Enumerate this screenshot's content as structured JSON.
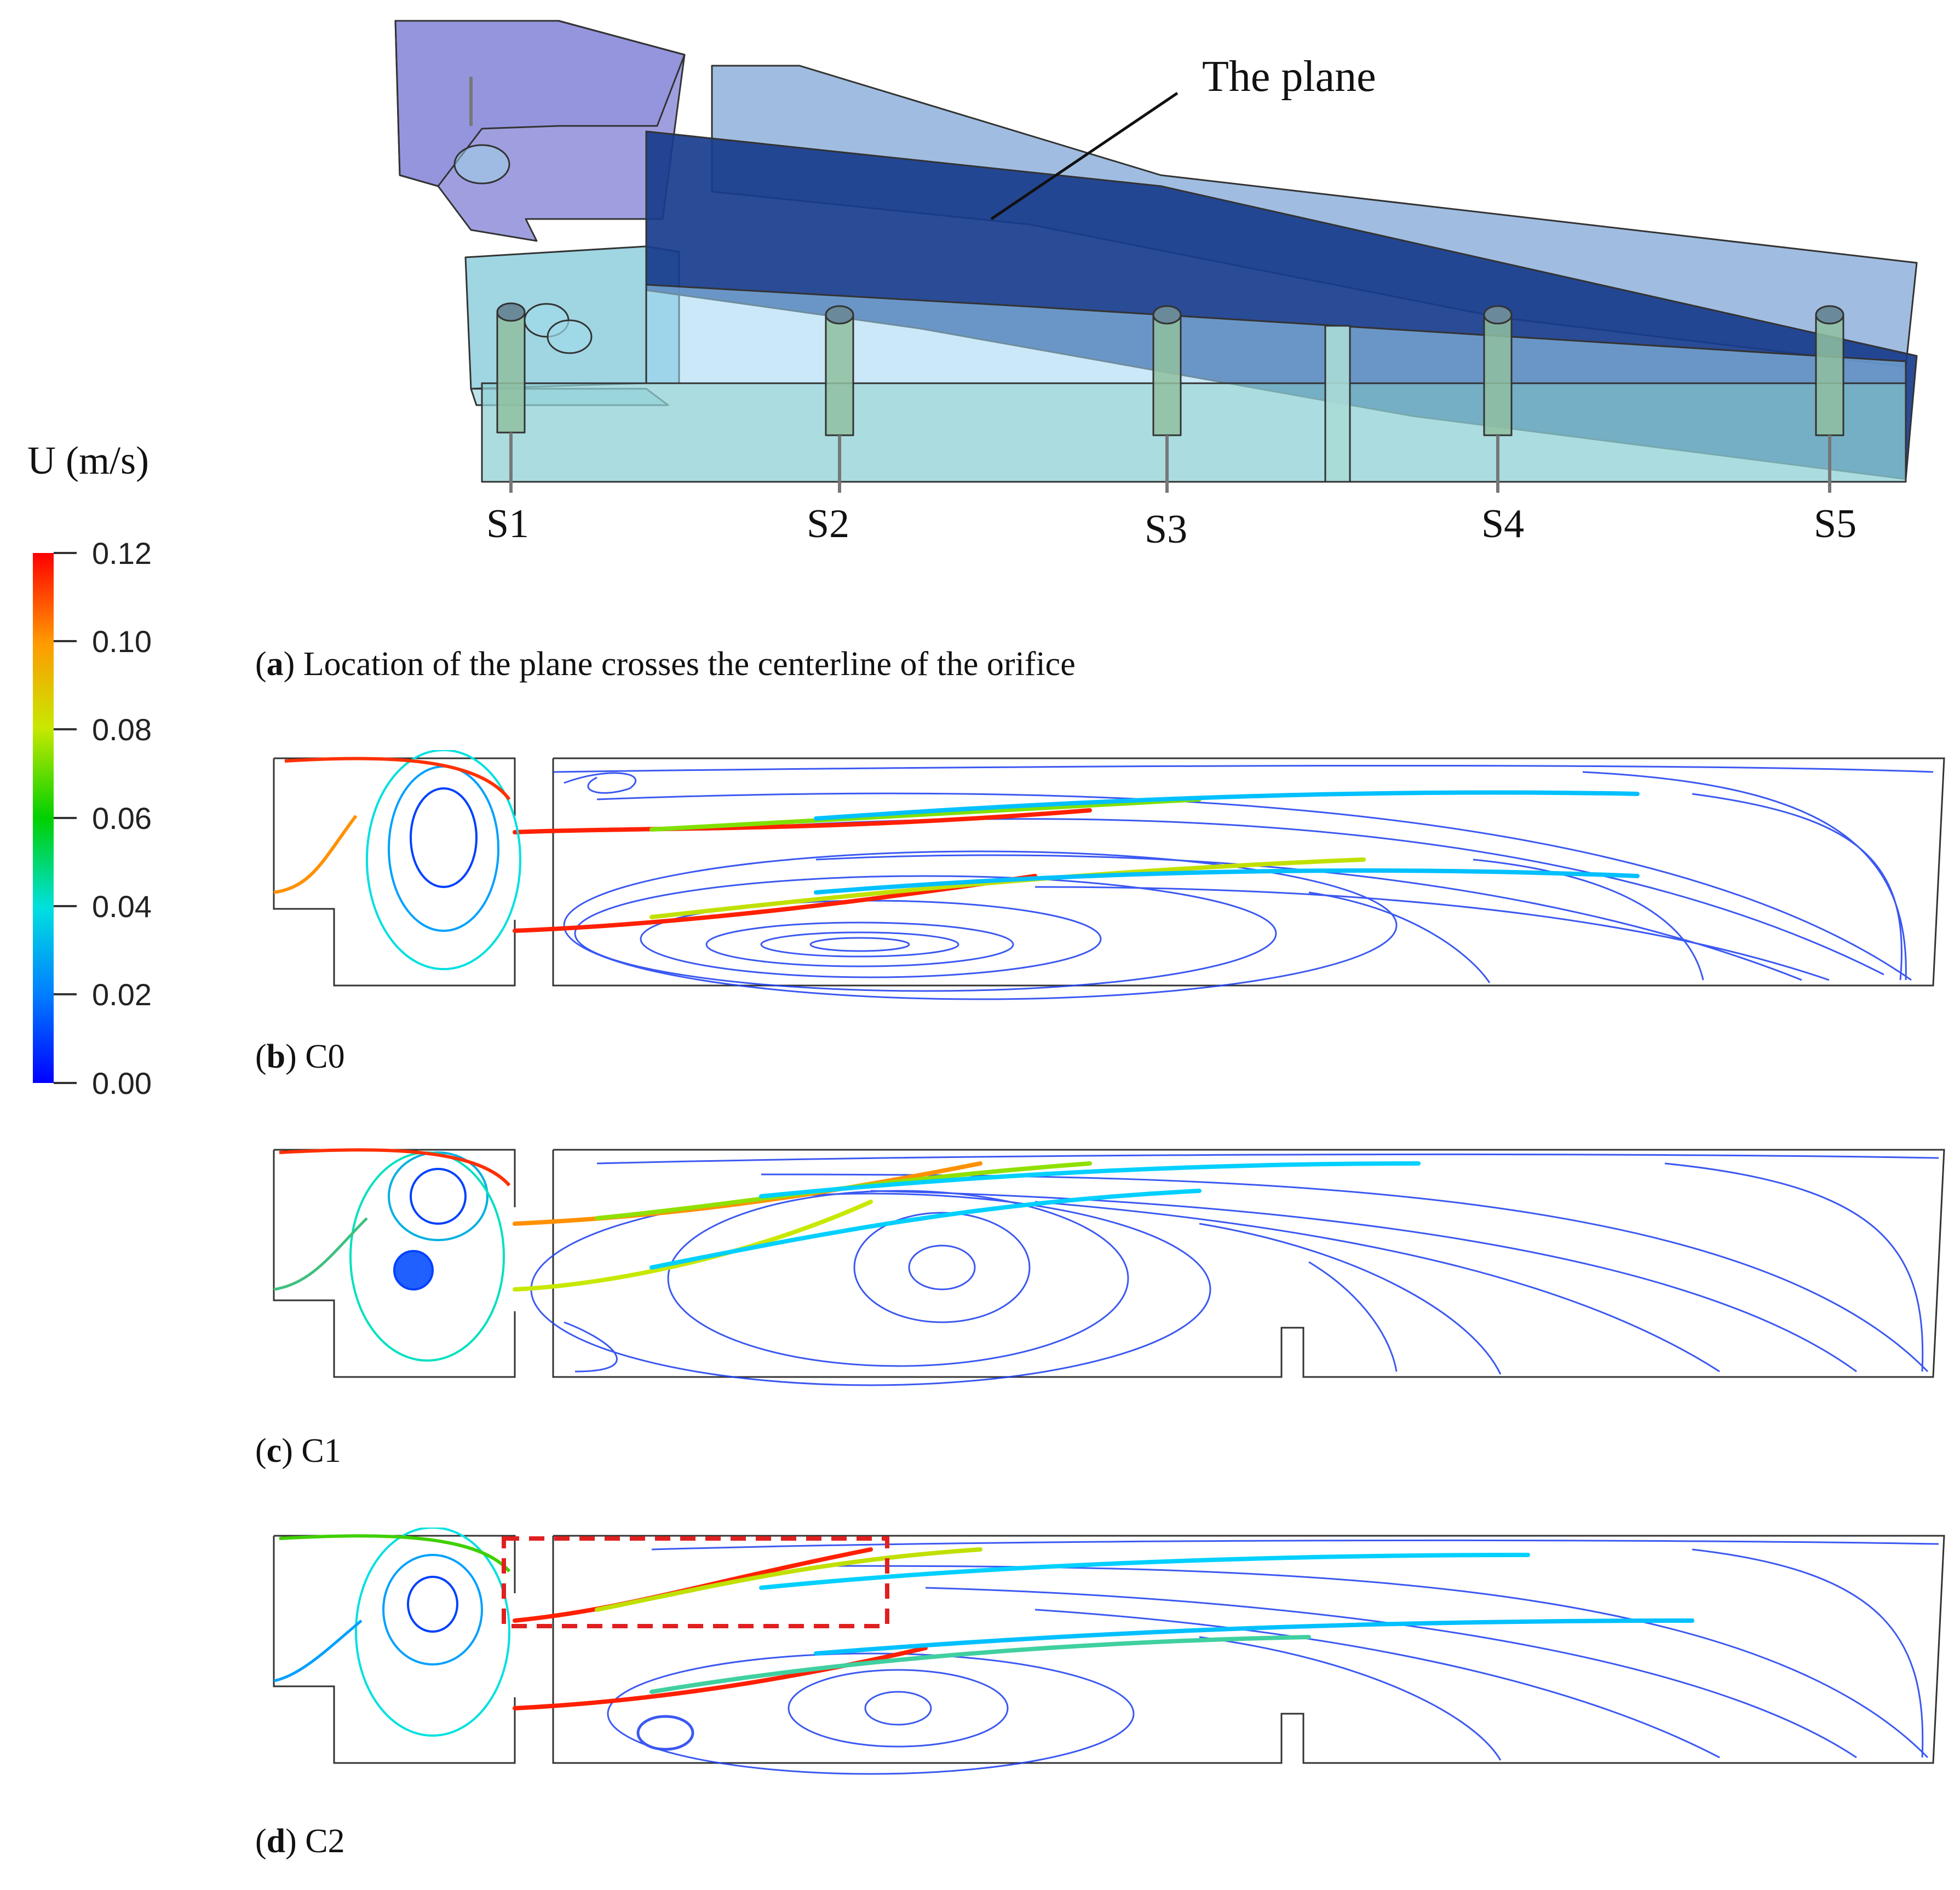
{
  "colorbar": {
    "title": "U (m/s)",
    "ticks": [
      "0.12",
      "0.10",
      "0.08",
      "0.06",
      "0.04",
      "0.02",
      "0.00"
    ],
    "min": 0.0,
    "max": 0.12,
    "colormap": [
      "#0000ff",
      "#00a0ff",
      "#00e5e5",
      "#00d000",
      "#e8e800",
      "#ff9000",
      "#ff0000"
    ]
  },
  "panel_a": {
    "plane_label": "The plane",
    "sensors": [
      "S1",
      "S2",
      "S3",
      "S4",
      "S5"
    ],
    "caption_letter": "a",
    "caption_text": "Location of the plane crosses the centerline of the orifice"
  },
  "panel_b": {
    "caption_letter": "b",
    "caption_text": "C0"
  },
  "panel_c": {
    "caption_letter": "c",
    "caption_text": "C1"
  },
  "panel_d": {
    "caption_letter": "d",
    "caption_text": "C2"
  }
}
